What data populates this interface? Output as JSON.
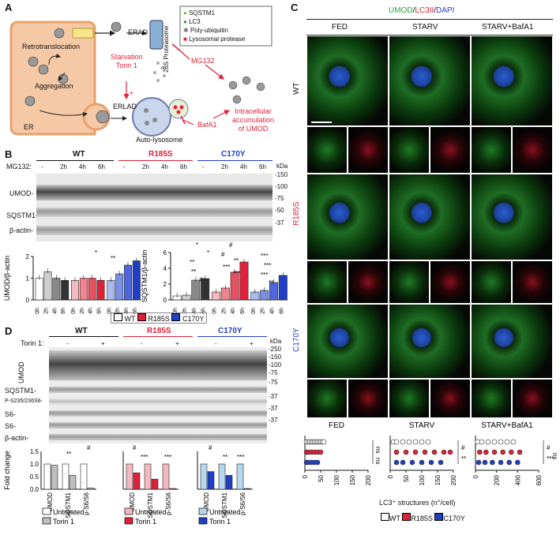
{
  "panels": {
    "a": "A",
    "b": "B",
    "c": "C",
    "d": "D"
  },
  "panelA": {
    "erad": "ERAD",
    "proteasome": "26S Proteasome",
    "legend": [
      "SQSTM1",
      "LC3",
      "Poly-ubiquitin",
      "Lysosomal protease"
    ],
    "legend_colors": [
      "#7dbb42",
      "#3a8e3a",
      "#666666",
      "#e0213a"
    ],
    "mg132": "MG132",
    "retrotranslocation": "Retrotranslocation",
    "aggregation": "Aggregation",
    "er": "ER",
    "erlad": "ERLAD",
    "starvation": "Starvation",
    "torin": "Torin 1",
    "plus": "+",
    "autolysosome": "Auto-lysosome",
    "bafa1": "BafA1",
    "accum": [
      "Intracellular",
      "accumulation",
      "of UMOD"
    ]
  },
  "panelB": {
    "groups": [
      "WT",
      "R185S",
      "C170Y"
    ],
    "group_colors": [
      "#111111",
      "#e0213a",
      "#1f3fc4"
    ],
    "mg_label": "MG132:",
    "mg_times": [
      "-",
      "2h",
      "4h",
      "6h"
    ],
    "kda": "kDa",
    "rows": [
      "UMOD-",
      "SQSTM1-",
      "β-actin-"
    ],
    "markers": [
      "-150",
      "-100",
      "-75",
      "-50",
      "-37"
    ],
    "ylabel1": "UMOD/β-actin",
    "ylabel2": "SQSTM1/β-actin",
    "xticks": [
      "0h",
      "2h",
      "4h",
      "6h"
    ],
    "legend": [
      "WT",
      "R185S",
      "C170Y"
    ],
    "sig": [
      "*",
      "**",
      "*",
      "*",
      "**",
      "**",
      "#",
      "#",
      "#",
      "**",
      "***",
      "***",
      "***",
      "**"
    ]
  },
  "panelC": {
    "title_umod": "UMOD",
    "title_sep1": "/",
    "title_lc3": "LC3II",
    "title_sep2": "/",
    "title_dapi": "DAPI",
    "cols": [
      "FED",
      "STARV",
      "STARV+BafA1"
    ],
    "rows": [
      "WT",
      "R185S",
      "C170Y"
    ],
    "sub_titles": [
      "FED",
      "STARV",
      "STARV+BafA1"
    ],
    "xticks1": [
      "0",
      "50",
      "100",
      "150",
      "200"
    ],
    "xticks2": [
      "0",
      "200",
      "400",
      "600"
    ],
    "xlabel": "LC3⁺ structures (n°/cell)",
    "legend": [
      "WT",
      "R185S",
      "C170Y"
    ],
    "ns": "ns",
    "sig": [
      "#",
      "**",
      "#",
      "***"
    ]
  },
  "panelD": {
    "groups": [
      "WT",
      "R185S",
      "C170Y"
    ],
    "torin_label": "Torin 1:",
    "torin_vals": [
      "-",
      "+"
    ],
    "kda": "kDa",
    "rows": [
      "UMOD",
      "SQSTM1-",
      "P-S235/236",
      "S6-",
      "S6-",
      "β-actin-"
    ],
    "row_p_suffix": "S6-",
    "markers": [
      "-250",
      "-150",
      "-100",
      "-75",
      "-75",
      "-37",
      "-37",
      "-37"
    ],
    "ylabel": "Fold change",
    "xcats": [
      "UMOD",
      "SQSTM1",
      "p-S6/S6"
    ],
    "legend_untreated": "Untreated",
    "legend_torin": "Torin 1",
    "sig": [
      "**",
      "#",
      "#",
      "***",
      "***",
      "#",
      "**",
      "***"
    ]
  },
  "chart_data": [
    {
      "type": "bar",
      "title": "UMOD/β-actin",
      "categories": [
        "0h",
        "2h",
        "4h",
        "6h"
      ],
      "ylim": [
        0,
        2
      ],
      "yticks": [
        "0",
        "1",
        "2"
      ],
      "series": [
        {
          "name": "WT",
          "values": [
            1.0,
            1.3,
            1.0,
            0.9
          ]
        },
        {
          "name": "R185S",
          "values": [
            0.9,
            1.0,
            1.0,
            0.9
          ]
        },
        {
          "name": "C170Y",
          "values": [
            0.9,
            1.2,
            1.6,
            1.8
          ]
        }
      ]
    },
    {
      "type": "bar",
      "title": "SQSTM1/β-actin",
      "categories": [
        "0h",
        "2h",
        "4h",
        "6h"
      ],
      "ylim": [
        0,
        6
      ],
      "yticks": [
        "0",
        "2",
        "4",
        "6"
      ],
      "series": [
        {
          "name": "WT",
          "values": [
            0.5,
            0.6,
            2.5,
            2.7
          ]
        },
        {
          "name": "R185S",
          "values": [
            1.0,
            1.5,
            3.5,
            4.8
          ]
        },
        {
          "name": "C170Y",
          "values": [
            1.0,
            1.2,
            2.2,
            3.1
          ]
        }
      ]
    },
    {
      "type": "bar",
      "title": "Fold change WT",
      "categories": [
        "UMOD",
        "SQSTM1",
        "p-S6/S6"
      ],
      "ylim": [
        0,
        1.5
      ],
      "yticks": [
        "0.0",
        "0.5",
        "1.0",
        "1.5"
      ],
      "series": [
        {
          "name": "Untreated",
          "values": [
            1.0,
            1.0,
            1.0
          ]
        },
        {
          "name": "Torin 1",
          "values": [
            0.95,
            0.55,
            0.05
          ]
        }
      ]
    },
    {
      "type": "bar",
      "title": "Fold change R185S",
      "categories": [
        "UMOD",
        "SQSTM1",
        "p-S6/S6"
      ],
      "ylim": [
        0,
        1.5
      ],
      "series": [
        {
          "name": "Untreated",
          "values": [
            1.0,
            1.0,
            1.0
          ]
        },
        {
          "name": "Torin 1",
          "values": [
            0.65,
            0.4,
            0.03
          ]
        }
      ]
    },
    {
      "type": "bar",
      "title": "Fold change C170Y",
      "categories": [
        "UMOD",
        "SQSTM1",
        "p-S6/S6"
      ],
      "ylim": [
        0,
        1.5
      ],
      "series": [
        {
          "name": "Untreated",
          "values": [
            1.0,
            1.0,
            1.0
          ]
        },
        {
          "name": "Torin 1",
          "values": [
            0.7,
            0.55,
            0.03
          ]
        }
      ]
    },
    {
      "type": "scatter",
      "title": "FED",
      "xlim": [
        0,
        200
      ],
      "series": [
        {
          "name": "WT",
          "values": [
            5,
            10,
            15,
            20,
            25,
            30,
            35,
            40,
            45,
            50,
            55,
            60
          ]
        },
        {
          "name": "R185S",
          "values": [
            5,
            10,
            20,
            30,
            40,
            50
          ]
        },
        {
          "name": "C170Y",
          "values": [
            5,
            10,
            20,
            30,
            40
          ]
        }
      ]
    },
    {
      "type": "scatter",
      "title": "STARV",
      "xlim": [
        0,
        200
      ],
      "series": [
        {
          "name": "WT",
          "values": [
            10,
            20,
            40,
            60,
            80,
            100,
            120
          ]
        },
        {
          "name": "R185S",
          "values": [
            20,
            50,
            80,
            110,
            140,
            170,
            190
          ]
        },
        {
          "name": "C170Y",
          "values": [
            20,
            40,
            70,
            100,
            130,
            160
          ]
        }
      ]
    },
    {
      "type": "scatter",
      "title": "STARV+BafA1",
      "xlim": [
        0,
        600
      ],
      "series": [
        {
          "name": "WT",
          "values": [
            20,
            60,
            120,
            180,
            240,
            300,
            360
          ]
        },
        {
          "name": "R185S",
          "values": [
            40,
            100,
            180,
            260,
            340,
            420
          ]
        },
        {
          "name": "C170Y",
          "values": [
            30,
            90,
            160,
            240,
            320,
            400
          ]
        }
      ]
    }
  ]
}
